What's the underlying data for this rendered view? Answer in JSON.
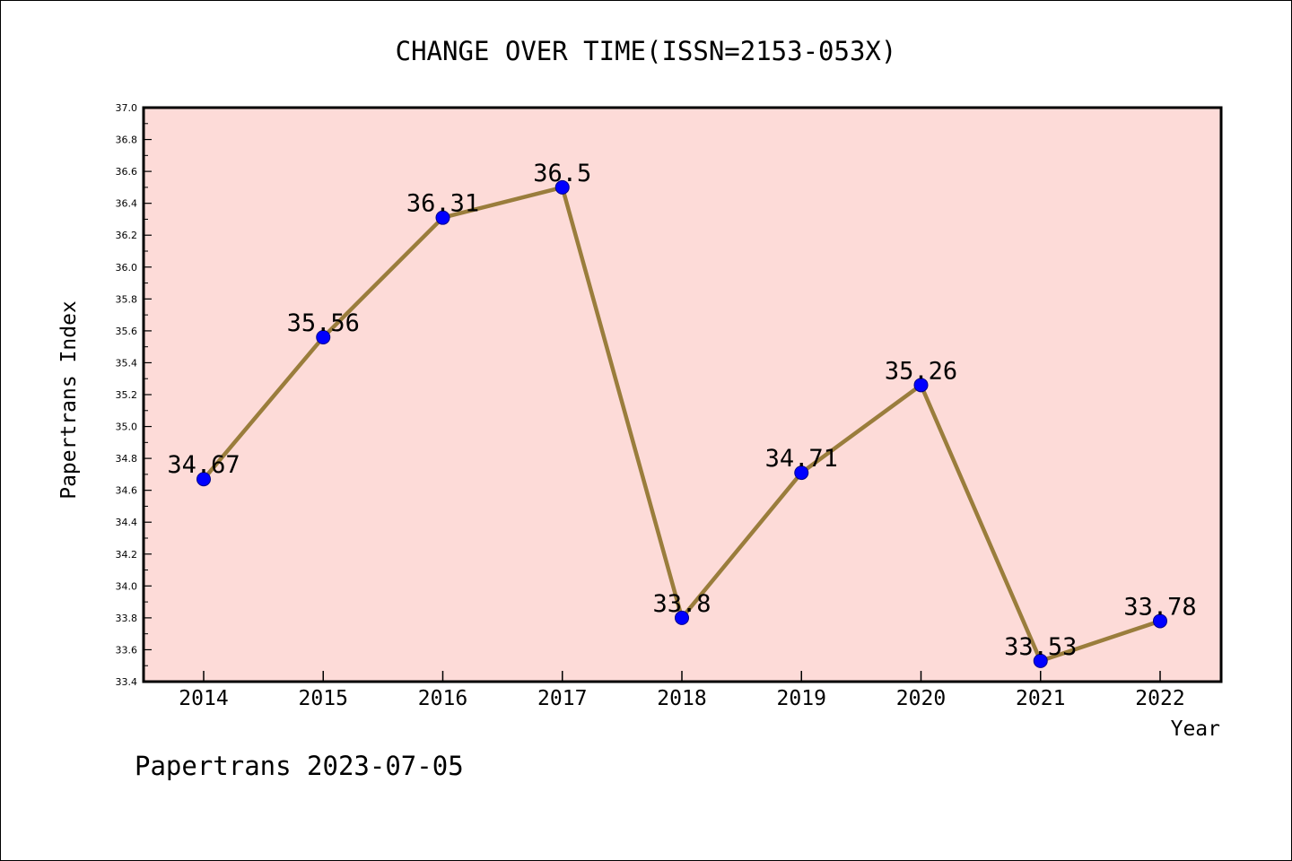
{
  "chart_data": {
    "type": "line",
    "title": "CHANGE OVER TIME(ISSN=2153-053X)",
    "xlabel": "Year",
    "ylabel": "Papertrans Index",
    "footer": "Papertrans 2023-07-05",
    "categories": [
      "2014",
      "2015",
      "2016",
      "2017",
      "2018",
      "2019",
      "2020",
      "2021",
      "2022"
    ],
    "series": [
      {
        "values": [
          34.67,
          35.56,
          36.31,
          36.5,
          33.8,
          34.71,
          35.26,
          33.53,
          33.78
        ],
        "labels": [
          "34.67",
          "35.56",
          "36.31",
          "36.5",
          "33.8",
          "34.71",
          "35.26",
          "33.53",
          "33.78"
        ]
      }
    ],
    "ylim": [
      33.4,
      37.0
    ],
    "yticks": [
      "33.4",
      "33.6",
      "33.8",
      "34.0",
      "34.2",
      "34.4",
      "34.6",
      "34.8",
      "35.0",
      "35.2",
      "35.4",
      "35.6",
      "35.8",
      "36.0",
      "36.2",
      "36.4",
      "36.6",
      "36.8",
      "37.0"
    ],
    "grid": false,
    "legend": "none",
    "colors": {
      "plot_background": "#fddbd8",
      "line": "#9a7d3c",
      "marker": "#0000ff",
      "axis": "#000000"
    }
  }
}
